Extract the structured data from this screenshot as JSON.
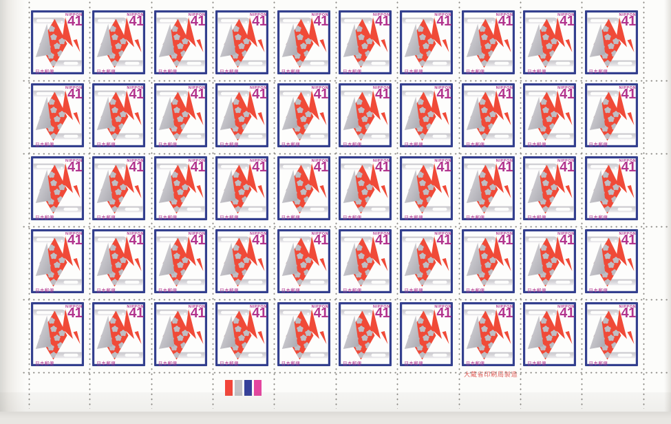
{
  "sheet": {
    "rows": 5,
    "columns": 10,
    "total_stamps": 50,
    "paper_color": "#fcfcfa"
  },
  "stamp": {
    "country_label": "NIPPON",
    "denomination": "41",
    "issuer_label": "日本郵便",
    "design": "origami-paper-crane",
    "colors": {
      "frame_blue": "#333f8e",
      "crane_red": "#f04a38",
      "silver_gray": "#bfbec4",
      "text_magenta": "#b2348e"
    }
  },
  "selvage": {
    "printer_imprint": "大蔵省印刷局製造",
    "imprint_color": "#e05a55",
    "color_bars": [
      "#f2453a",
      "#c3c2c6",
      "#35409a",
      "#e4459f"
    ]
  }
}
